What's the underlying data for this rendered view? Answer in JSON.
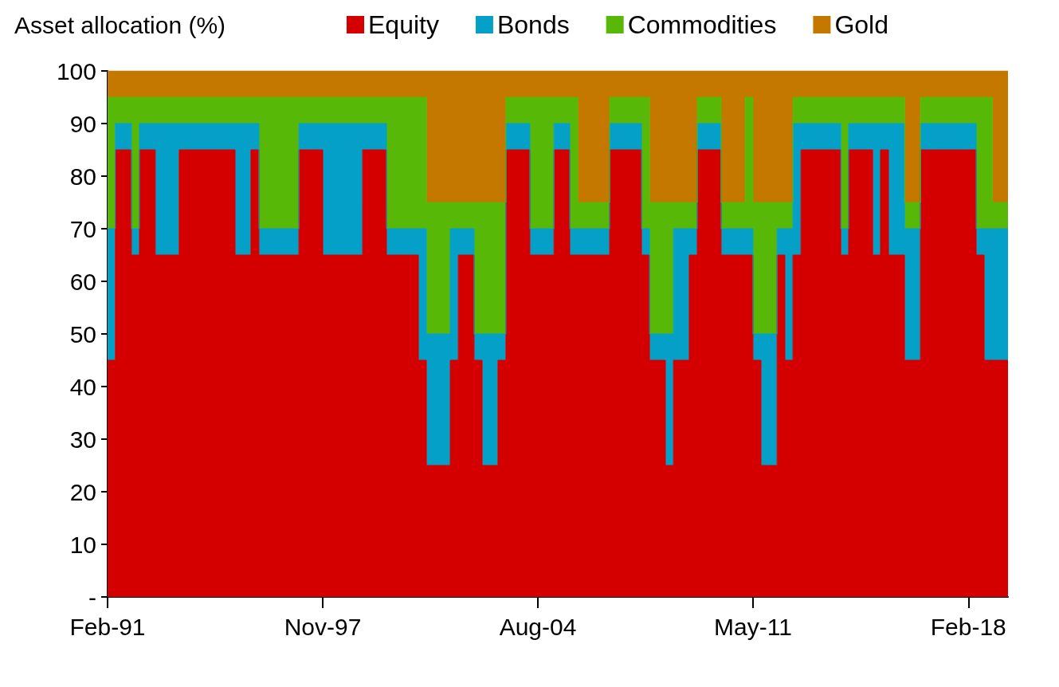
{
  "chart_data": {
    "type": "area",
    "stacked": true,
    "ylabel": "Asset allocation (%)",
    "legend": "top",
    "marker": "none",
    "x": [
      "1991-02",
      "1991-05",
      "1991-05",
      "1991-08",
      "1991-08",
      "1991-11",
      "1991-11",
      "1992-02",
      "1992-02",
      "1992-05",
      "1992-05",
      "1992-08",
      "1992-08",
      "1992-11",
      "1992-11",
      "1993-02",
      "1993-02",
      "1993-05",
      "1993-05",
      "1993-08",
      "1993-08",
      "1993-11",
      "1993-11",
      "1994-02",
      "1994-02",
      "1994-05",
      "1994-05",
      "1994-08",
      "1994-08",
      "1994-11",
      "1994-11",
      "1995-02",
      "1995-02",
      "1995-05",
      "1995-05",
      "1995-08",
      "1995-08",
      "1995-11",
      "1995-11",
      "1996-02",
      "1996-02",
      "1996-05",
      "1996-05",
      "1996-08",
      "1996-08",
      "1996-11",
      "1996-11",
      "1997-02",
      "1997-02",
      "1997-05",
      "1997-05",
      "1997-08",
      "1997-08",
      "1997-11",
      "1997-11",
      "1998-02",
      "1998-02",
      "1998-05",
      "1998-05",
      "1998-08",
      "1998-08",
      "1998-11",
      "1998-11",
      "1999-02",
      "1999-02",
      "1999-05",
      "1999-05",
      "1999-08",
      "1999-08",
      "1999-11",
      "1999-11",
      "2000-02",
      "2000-02",
      "2000-05",
      "2000-05",
      "2000-08",
      "2000-08",
      "2000-11",
      "2000-11",
      "2001-02",
      "2001-02",
      "2001-05",
      "2001-05",
      "2001-08",
      "2001-08",
      "2001-11",
      "2001-11",
      "2002-02",
      "2002-02",
      "2002-05",
      "2002-05",
      "2002-08",
      "2002-08",
      "2002-11",
      "2002-11",
      "2003-02",
      "2003-02",
      "2003-05",
      "2003-05",
      "2003-08",
      "2003-08",
      "2003-11",
      "2003-11",
      "2004-02",
      "2004-02",
      "2004-05",
      "2004-05",
      "2004-08",
      "2004-08",
      "2004-11",
      "2004-11",
      "2005-02",
      "2005-02",
      "2005-05",
      "2005-05",
      "2005-08",
      "2005-08",
      "2005-11",
      "2005-11",
      "2006-02",
      "2006-02",
      "2006-05",
      "2006-05",
      "2006-08",
      "2006-08",
      "2006-11",
      "2006-11",
      "2007-02",
      "2007-02",
      "2007-05",
      "2007-05",
      "2007-08",
      "2007-08",
      "2007-11",
      "2007-11",
      "2008-02",
      "2008-02",
      "2008-05",
      "2008-05",
      "2008-08",
      "2008-08",
      "2008-11",
      "2008-11",
      "2009-02",
      "2009-02",
      "2009-05",
      "2009-05",
      "2009-08",
      "2009-08",
      "2009-11",
      "2009-11",
      "2010-02",
      "2010-02",
      "2010-05",
      "2010-05",
      "2010-08",
      "2010-08",
      "2010-11",
      "2010-11",
      "2011-02",
      "2011-02",
      "2011-05",
      "2011-05",
      "2011-08",
      "2011-08",
      "2011-11",
      "2011-11",
      "2012-02",
      "2012-02",
      "2012-05",
      "2012-05",
      "2012-08",
      "2012-08",
      "2012-11",
      "2012-11",
      "2013-02",
      "2013-02",
      "2013-05",
      "2013-05",
      "2013-08",
      "2013-08",
      "2013-11",
      "2013-11",
      "2014-02",
      "2014-02",
      "2014-05",
      "2014-05",
      "2014-08",
      "2014-08",
      "2014-11",
      "2014-11",
      "2015-02",
      "2015-02",
      "2015-05",
      "2015-05",
      "2015-08",
      "2015-08",
      "2015-11",
      "2015-11",
      "2016-02",
      "2016-02",
      "2016-05",
      "2016-05",
      "2016-08",
      "2016-08",
      "2016-11",
      "2016-11",
      "2017-02",
      "2017-02",
      "2017-05",
      "2017-05",
      "2017-08",
      "2017-08",
      "2017-11",
      "2017-11",
      "2018-02",
      "2018-02",
      "2018-05",
      "2018-05",
      "2018-08",
      "2018-08",
      "2018-11",
      "2018-11",
      "2019-02",
      "2019-02",
      "2019-05"
    ],
    "series": [
      {
        "name": "Equity",
        "color": "#d40000",
        "values": [
          45,
          45,
          85,
          85,
          85,
          85,
          65,
          65,
          85,
          85,
          85,
          85,
          65,
          65,
          65,
          65,
          65,
          65,
          85,
          85,
          85,
          85,
          85,
          85,
          85,
          85,
          85,
          85,
          85,
          85,
          85,
          85,
          65,
          65,
          65,
          65,
          85,
          85,
          65,
          65,
          65,
          65,
          65,
          65,
          65,
          65,
          65,
          65,
          85,
          85,
          85,
          85,
          85,
          85,
          65,
          65,
          65,
          65,
          65,
          65,
          65,
          65,
          65,
          65,
          85,
          85,
          85,
          85,
          85,
          85,
          65,
          65,
          65,
          65,
          65,
          65,
          65,
          65,
          45,
          45,
          25,
          25,
          25,
          25,
          25,
          25,
          45,
          45,
          65,
          65,
          65,
          65,
          45,
          45,
          25,
          25,
          25,
          25,
          45,
          45,
          85,
          85,
          85,
          85,
          85,
          85,
          65,
          65,
          65,
          65,
          65,
          65,
          85,
          85,
          85,
          85,
          65,
          65,
          65,
          65,
          65,
          65,
          65,
          65,
          65,
          65,
          85,
          85,
          85,
          85,
          85,
          85,
          85,
          85,
          65,
          65,
          45,
          45,
          45,
          45,
          25,
          25,
          45,
          45,
          45,
          45,
          65,
          65,
          85,
          85,
          85,
          85,
          85,
          85,
          65,
          65,
          65,
          65,
          65,
          65,
          65,
          65,
          45,
          45,
          25,
          25,
          25,
          25,
          65,
          65,
          45,
          45,
          65,
          65,
          85,
          85,
          85,
          85,
          85,
          85,
          85,
          85,
          85,
          85,
          65,
          65,
          85,
          85,
          85,
          85,
          85,
          85,
          65,
          65,
          85,
          85,
          65,
          65,
          65,
          65,
          45,
          45,
          45,
          45,
          85,
          85,
          85,
          85,
          85,
          85,
          85,
          85,
          85,
          85,
          85,
          85,
          85,
          85,
          65,
          65,
          45,
          45,
          45,
          45,
          45,
          45
        ]
      },
      {
        "name": "Bonds",
        "color": "#04a0c8",
        "values": [
          25,
          25,
          5,
          5,
          5,
          5,
          5,
          5,
          5,
          5,
          5,
          5,
          25,
          25,
          25,
          25,
          25,
          25,
          5,
          5,
          5,
          5,
          5,
          5,
          5,
          5,
          5,
          5,
          5,
          5,
          5,
          5,
          25,
          25,
          25,
          25,
          5,
          5,
          5,
          5,
          5,
          5,
          5,
          5,
          5,
          5,
          5,
          5,
          5,
          5,
          5,
          5,
          5,
          5,
          25,
          25,
          25,
          25,
          25,
          25,
          25,
          25,
          25,
          25,
          5,
          5,
          5,
          5,
          5,
          5,
          5,
          5,
          5,
          5,
          5,
          5,
          5,
          5,
          25,
          25,
          25,
          25,
          25,
          25,
          25,
          25,
          25,
          25,
          5,
          5,
          5,
          5,
          5,
          5,
          25,
          25,
          25,
          25,
          5,
          5,
          5,
          5,
          5,
          5,
          5,
          5,
          5,
          5,
          5,
          5,
          5,
          5,
          5,
          5,
          5,
          5,
          5,
          5,
          5,
          5,
          5,
          5,
          5,
          5,
          5,
          5,
          5,
          5,
          5,
          5,
          5,
          5,
          5,
          5,
          5,
          5,
          5,
          5,
          5,
          5,
          25,
          25,
          25,
          25,
          25,
          25,
          5,
          5,
          5,
          5,
          5,
          5,
          5,
          5,
          5,
          5,
          5,
          5,
          5,
          5,
          5,
          5,
          5,
          5,
          25,
          25,
          25,
          25,
          5,
          5,
          25,
          25,
          25,
          25,
          5,
          5,
          5,
          5,
          5,
          5,
          5,
          5,
          5,
          5,
          5,
          5,
          5,
          5,
          5,
          5,
          5,
          5,
          25,
          25,
          5,
          5,
          25,
          25,
          25,
          25,
          25,
          25,
          25,
          25,
          5,
          5,
          5,
          5,
          5,
          5,
          5,
          5,
          5,
          5,
          5,
          5,
          5,
          5,
          5,
          5,
          25,
          25,
          25,
          25,
          25,
          25
        ]
      },
      {
        "name": "Commodities",
        "color": "#58b808",
        "values": [
          25,
          25,
          5,
          5,
          5,
          5,
          25,
          25,
          5,
          5,
          5,
          5,
          5,
          5,
          5,
          5,
          5,
          5,
          5,
          5,
          5,
          5,
          5,
          5,
          5,
          5,
          5,
          5,
          5,
          5,
          5,
          5,
          5,
          5,
          5,
          5,
          5,
          5,
          25,
          25,
          25,
          25,
          25,
          25,
          25,
          25,
          25,
          25,
          5,
          5,
          5,
          5,
          5,
          5,
          5,
          5,
          5,
          5,
          5,
          5,
          5,
          5,
          5,
          5,
          5,
          5,
          5,
          5,
          5,
          5,
          25,
          25,
          25,
          25,
          25,
          25,
          25,
          25,
          25,
          25,
          25,
          25,
          25,
          25,
          25,
          25,
          5,
          5,
          5,
          5,
          5,
          5,
          25,
          25,
          25,
          25,
          25,
          25,
          25,
          25,
          5,
          5,
          5,
          5,
          5,
          5,
          25,
          25,
          25,
          25,
          25,
          25,
          5,
          5,
          5,
          5,
          25,
          25,
          5,
          5,
          5,
          5,
          5,
          5,
          5,
          5,
          5,
          5,
          5,
          5,
          5,
          5,
          5,
          5,
          25,
          25,
          25,
          25,
          25,
          25,
          25,
          25,
          5,
          5,
          5,
          5,
          5,
          5,
          5,
          5,
          5,
          5,
          5,
          5,
          5,
          5,
          5,
          5,
          5,
          5,
          25,
          25,
          25,
          25,
          25,
          25,
          25,
          25,
          5,
          5,
          5,
          5,
          5,
          5,
          5,
          5,
          5,
          5,
          5,
          5,
          5,
          5,
          5,
          5,
          25,
          25,
          5,
          5,
          5,
          5,
          5,
          5,
          5,
          5,
          5,
          5,
          5,
          5,
          5,
          5,
          5,
          5,
          5,
          5,
          5,
          5,
          5,
          5,
          5,
          5,
          5,
          5,
          5,
          5,
          5,
          5,
          5,
          5,
          25,
          25,
          25,
          25,
          5,
          5,
          5,
          5
        ]
      },
      {
        "name": "Gold",
        "color": "#c47800",
        "values": [
          5,
          5,
          5,
          5,
          5,
          5,
          5,
          5,
          5,
          5,
          5,
          5,
          5,
          5,
          5,
          5,
          5,
          5,
          5,
          5,
          5,
          5,
          5,
          5,
          5,
          5,
          5,
          5,
          5,
          5,
          5,
          5,
          5,
          5,
          5,
          5,
          5,
          5,
          5,
          5,
          5,
          5,
          5,
          5,
          5,
          5,
          5,
          5,
          5,
          5,
          5,
          5,
          5,
          5,
          5,
          5,
          5,
          5,
          5,
          5,
          5,
          5,
          5,
          5,
          5,
          5,
          5,
          5,
          5,
          5,
          5,
          5,
          5,
          5,
          5,
          5,
          5,
          5,
          5,
          5,
          25,
          25,
          25,
          25,
          25,
          25,
          25,
          25,
          25,
          25,
          25,
          25,
          25,
          25,
          25,
          25,
          25,
          25,
          25,
          25,
          5,
          5,
          5,
          5,
          5,
          5,
          5,
          5,
          5,
          5,
          5,
          5,
          5,
          5,
          5,
          5,
          5,
          5,
          25,
          25,
          25,
          25,
          25,
          25,
          25,
          25,
          5,
          5,
          5,
          5,
          5,
          5,
          5,
          5,
          5,
          5,
          25,
          25,
          25,
          25,
          25,
          25,
          25,
          25,
          25,
          25,
          25,
          25,
          5,
          5,
          5,
          5,
          5,
          5,
          25,
          25,
          25,
          25,
          25,
          25,
          5,
          5,
          25,
          25,
          25,
          25,
          25,
          25,
          25,
          25,
          25,
          25,
          5,
          5,
          5,
          5,
          5,
          5,
          5,
          5,
          5,
          5,
          5,
          5,
          5,
          5,
          5,
          5,
          5,
          5,
          5,
          5,
          5,
          5,
          5,
          5,
          5,
          5,
          5,
          5,
          25,
          25,
          25,
          25,
          5,
          5,
          5,
          5,
          5,
          5,
          5,
          5,
          5,
          5,
          5,
          5,
          5,
          5,
          5,
          5,
          5,
          5,
          25,
          25,
          25,
          25
        ]
      }
    ],
    "xlim": [
      "1991-02",
      "2019-05"
    ],
    "xticks": [
      {
        "value": "1991-02",
        "label": "Feb-91"
      },
      {
        "value": "1997-11",
        "label": "Nov-97"
      },
      {
        "value": "2004-08",
        "label": "Aug-04"
      },
      {
        "value": "2011-05",
        "label": "May-11"
      },
      {
        "value": "2018-02",
        "label": "Feb-18"
      }
    ],
    "ylim": [
      0,
      100
    ],
    "yticks": [
      {
        "value": 0,
        "label": "-"
      },
      10,
      20,
      30,
      40,
      50,
      60,
      70,
      80,
      90,
      100
    ]
  }
}
